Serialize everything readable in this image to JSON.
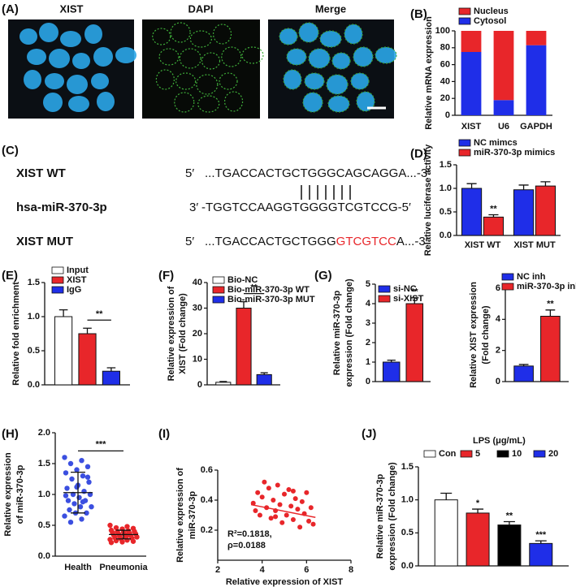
{
  "figure_a": {
    "panel": "(A)",
    "titles": [
      "XIST",
      "DAPI",
      "Merge"
    ]
  },
  "sequence_panel": {
    "panel": "(C)",
    "rows": [
      {
        "label": "XIST WT",
        "end": "5′",
        "parts": [
          {
            "text": "...TGACCACTGCTGGGCAGCAGGA...-3′",
            "color": "#111111"
          }
        ]
      },
      {
        "label": "hsa-miR-370-3p",
        "end": "3′",
        "parts": [
          {
            "text": "-TGGTCCAAGGTGGGGTCGTCCG-5′",
            "color": "#111111"
          }
        ]
      },
      {
        "label": "XIST MUT",
        "end": "5′",
        "parts": [
          {
            "text": "...TGACCACTGCTGGG",
            "color": "#111111"
          },
          {
            "text": "GTCGTCC",
            "color": "#e8262a"
          },
          {
            "text": "A...-3′",
            "color": "#111111"
          }
        ]
      }
    ]
  },
  "chart_data": [
    {
      "panel": "(B)",
      "type": "stacked_bar",
      "y_label": [
        "Relative mRNA expression"
      ],
      "categories": [
        "XIST",
        "U6",
        "GAPDH"
      ],
      "series": [
        {
          "name": "Cytosol",
          "color": "#1f2ee8",
          "values": [
            75,
            18,
            83
          ]
        },
        {
          "name": "Nucleus",
          "color": "#e8262a",
          "values": [
            25,
            82,
            17
          ]
        }
      ],
      "ylim": [
        0,
        100
      ],
      "yticks": [
        0,
        20,
        40,
        60,
        80,
        100
      ],
      "legend": "upper left"
    },
    {
      "panel": "(D)",
      "type": "bar",
      "y_label": [
        "Relative luciferase activity"
      ],
      "categories": [
        "XIST WT",
        "XIST MUT"
      ],
      "series": [
        {
          "name": "NC mimcs",
          "color": "#1f2ee8",
          "values": [
            1.0,
            0.97
          ],
          "errors": [
            0.1,
            0.1
          ],
          "annotations": [
            null,
            null
          ]
        },
        {
          "name": "miR-370-3p mimics",
          "color": "#e8262a",
          "values": [
            0.39,
            1.05
          ],
          "errors": [
            0.05,
            0.09
          ],
          "annotations": [
            "**",
            null
          ]
        }
      ],
      "ylim": [
        0,
        1.5
      ],
      "yticks": [
        {
          "value": 0,
          "label": "0.0"
        },
        0.5,
        {
          "value": 1,
          "label": "1.0"
        },
        1.5
      ],
      "legend": "upper left"
    },
    {
      "panel": "(E)",
      "type": "bar",
      "y_label": [
        "Relative fold enrichment"
      ],
      "series": [
        {
          "name": "Input",
          "color": "#ffffff",
          "values": [
            1.0
          ],
          "errors": [
            0.1
          ]
        },
        {
          "name": "XIST",
          "color": "#e8262a",
          "values": [
            0.75
          ],
          "errors": [
            0.08
          ]
        },
        {
          "name": "IgG",
          "color": "#1f2ee8",
          "values": [
            0.2
          ],
          "errors": [
            0.05
          ]
        }
      ],
      "significance": "**",
      "ylim": [
        0,
        1.5
      ],
      "yticks": [
        {
          "value": 0,
          "label": "0.0"
        },
        0.5,
        {
          "value": 1,
          "label": "1.0"
        },
        1.5
      ],
      "legend": "upper left"
    },
    {
      "panel": "(F)",
      "type": "bar",
      "y_label": [
        "Relative expression of",
        "XIST (Fold change)"
      ],
      "series": [
        {
          "name": "Bio-NC",
          "color": "#ffffff",
          "values": [
            1
          ],
          "errors": [
            0.3
          ]
        },
        {
          "name": "Bio-miR-370-3p WT",
          "color": "#e8262a",
          "values": [
            30
          ],
          "errors": [
            2.5
          ]
        },
        {
          "name": "Bio-miR-370-3p MUT",
          "color": "#1f2ee8",
          "values": [
            4
          ],
          "errors": [
            0.7
          ]
        }
      ],
      "significance": "**",
      "ylim": [
        0,
        40
      ],
      "yticks": [
        0,
        10,
        20,
        30,
        40
      ],
      "legend": "upper left"
    },
    {
      "panel": "(G)",
      "type": "bar",
      "y_label": [
        "Relative miR-370-3p",
        "expression (Fold change)"
      ],
      "series": [
        {
          "name": "si-NC",
          "color": "#1f2ee8",
          "values": [
            1.0
          ],
          "errors": [
            0.1
          ],
          "annotations": [
            null
          ]
        },
        {
          "name": "si-XIST",
          "color": "#e8262a",
          "values": [
            4.0
          ],
          "errors": [
            0.3
          ],
          "annotations": [
            "**"
          ]
        }
      ],
      "ylim": [
        0,
        5
      ],
      "yticks": [
        0,
        1,
        2,
        3,
        4,
        5
      ],
      "legend": "upper left"
    },
    {
      "type": "bar",
      "y_label": [
        "Relative XIST expression",
        "(Fold change)"
      ],
      "series": [
        {
          "name": "NC inh",
          "color": "#1f2ee8",
          "values": [
            1.0
          ],
          "errors": [
            0.1
          ],
          "annotations": [
            null
          ]
        },
        {
          "name": "miR-370-3p inh",
          "color": "#e8262a",
          "values": [
            4.2
          ],
          "errors": [
            0.4
          ],
          "annotations": [
            "**"
          ]
        }
      ],
      "ylim": [
        0,
        6
      ],
      "yticks": [
        0,
        2,
        4,
        6
      ],
      "legend": "upper left"
    },
    {
      "panel": "(H)",
      "type": "dot",
      "y_label": [
        "Relative expression",
        "of miR-370-3p"
      ],
      "categories": [
        "Health",
        "Pneumonia"
      ],
      "groups": [
        {
          "color": "#3b4fe0",
          "mean": 1.03,
          "sd": 0.33,
          "values": [
            1.6,
            1.55,
            1.5,
            1.45,
            1.4,
            1.35,
            1.3,
            1.25,
            1.2,
            1.15,
            1.1,
            1.05,
            1.0,
            1.0,
            0.95,
            0.9,
            0.9,
            0.85,
            0.8,
            0.8,
            0.75,
            0.7,
            0.7,
            0.65,
            0.6,
            0.55,
            1.28,
            1.12,
            0.98,
            0.88
          ]
        },
        {
          "color": "#e8262a",
          "mean": 0.35,
          "sd": 0.07,
          "values": [
            0.5,
            0.48,
            0.46,
            0.45,
            0.44,
            0.42,
            0.41,
            0.4,
            0.4,
            0.39,
            0.38,
            0.37,
            0.36,
            0.36,
            0.35,
            0.34,
            0.33,
            0.32,
            0.31,
            0.3,
            0.3,
            0.29,
            0.28,
            0.27,
            0.26,
            0.25,
            0.24,
            0.23,
            0.22,
            0.35
          ]
        }
      ],
      "significance": "***",
      "ylim": [
        0,
        2
      ],
      "yticks": [
        {
          "value": 0,
          "label": "0.0"
        },
        0.5,
        {
          "value": 1,
          "label": "1.0"
        },
        1.5,
        {
          "value": 2,
          "label": "2.0"
        }
      ]
    },
    {
      "panel": "(I)",
      "type": "scatter",
      "y_label": [
        "Relative expression of",
        "miR-370-3p"
      ],
      "x_label": "Relative expression of XIST",
      "color": "#e8262a",
      "x": [
        3.6,
        3.8,
        3.9,
        4.0,
        4.1,
        4.2,
        4.3,
        4.4,
        4.5,
        4.6,
        4.7,
        4.8,
        4.9,
        5.0,
        5.1,
        5.2,
        5.3,
        5.4,
        5.5,
        5.6,
        5.7,
        5.8,
        5.9,
        6.0,
        6.1,
        6.2,
        6.3,
        3.7,
        4.6,
        5.4
      ],
      "y": [
        0.38,
        0.45,
        0.3,
        0.42,
        0.52,
        0.35,
        0.48,
        0.28,
        0.4,
        0.33,
        0.5,
        0.37,
        0.25,
        0.44,
        0.3,
        0.47,
        0.36,
        0.27,
        0.41,
        0.34,
        0.22,
        0.39,
        0.31,
        0.45,
        0.26,
        0.35,
        0.24,
        0.33,
        0.29,
        0.46
      ],
      "fit": {
        "x": [
          3.5,
          6.4
        ],
        "y": [
          0.37,
          0.285
        ]
      },
      "annotation": [
        "R²=0.1818,",
        "ρ=0.0188"
      ],
      "xlim": [
        2,
        8
      ],
      "xticks": [
        2,
        4,
        6,
        8
      ],
      "ylim": [
        0,
        0.6
      ],
      "yticks": [
        0.2,
        0.4,
        0.6
      ]
    },
    {
      "panel": "(J)",
      "type": "bar",
      "y_label": [
        "Relative miR-370-3p",
        "expression (Fold change)"
      ],
      "legend_title": "LPS (μg/mL)",
      "series": [
        {
          "name": "Con",
          "color": "#ffffff",
          "values": [
            1.0
          ],
          "errors": [
            0.1
          ],
          "annotations": [
            null
          ]
        },
        {
          "name": "5",
          "color": "#e8262a",
          "values": [
            0.8
          ],
          "errors": [
            0.06
          ],
          "annotations": [
            "*"
          ]
        },
        {
          "name": "10",
          "color": "#000000",
          "values": [
            0.62
          ],
          "errors": [
            0.05
          ],
          "annotations": [
            "**"
          ]
        },
        {
          "name": "20",
          "color": "#1f2ee8",
          "values": [
            0.34
          ],
          "errors": [
            0.04
          ],
          "annotations": [
            "***"
          ]
        }
      ],
      "ylim": [
        0,
        1.5
      ],
      "yticks": [
        {
          "value": 0,
          "label": "0.0"
        },
        0.5,
        {
          "value": 1,
          "label": "1.0"
        },
        1.5
      ],
      "legend": "top"
    }
  ]
}
